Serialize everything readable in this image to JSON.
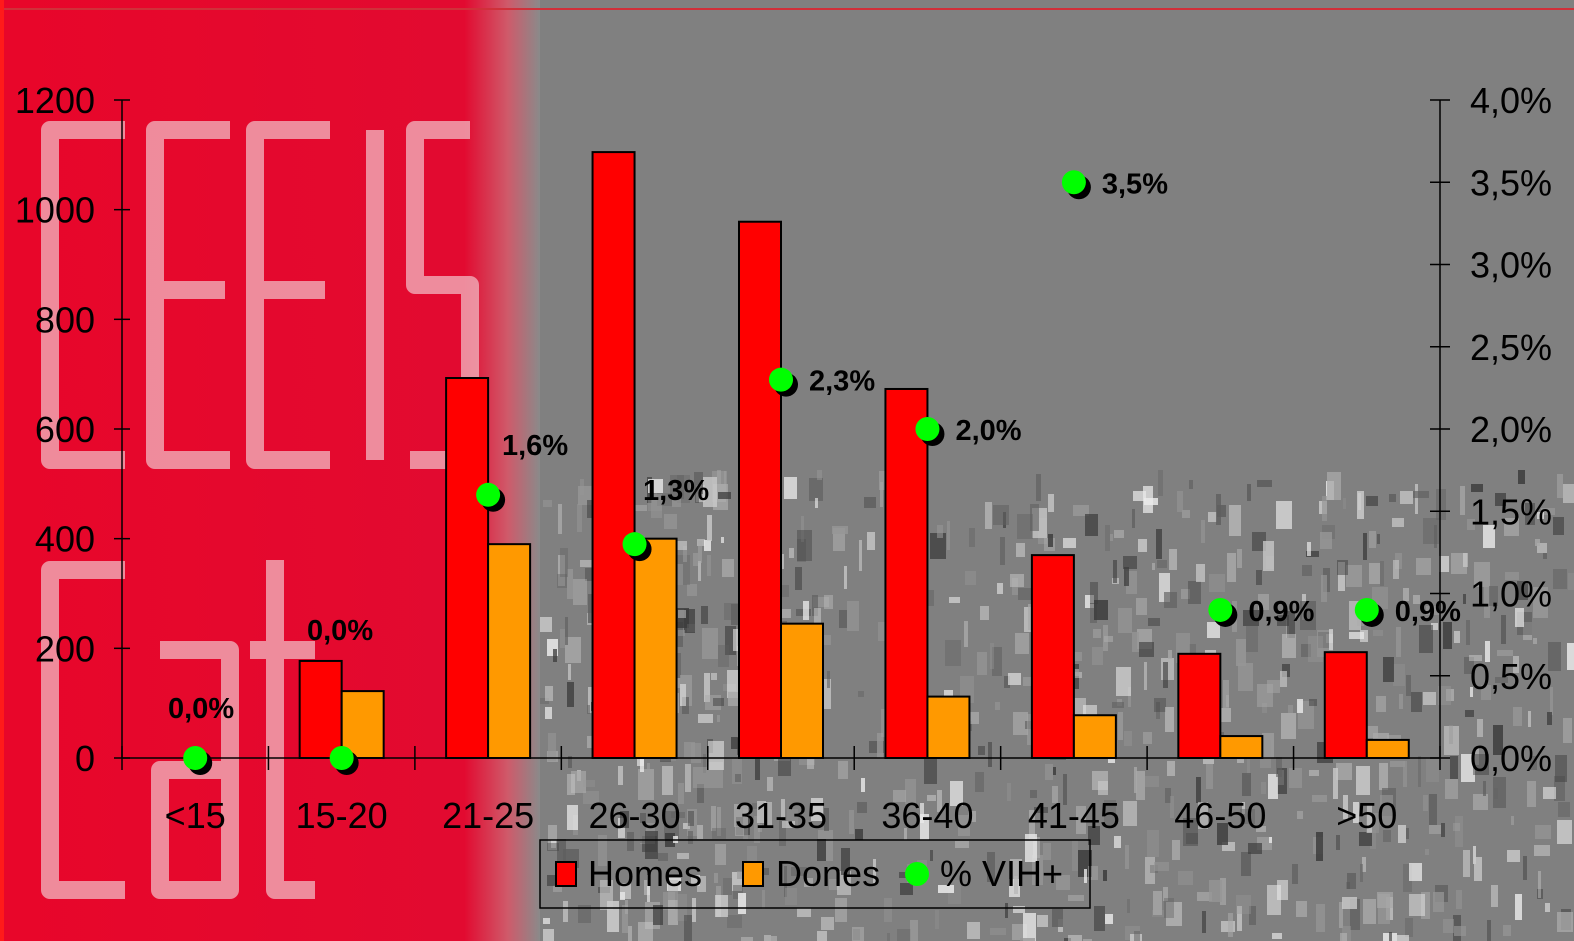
{
  "chart_data": {
    "type": "bar",
    "categories": [
      "<15",
      "15-20",
      "21-25",
      "26-30",
      "31-35",
      "36-40",
      "41-45",
      "46-50",
      ">50"
    ],
    "series": [
      {
        "name": "Homes",
        "type": "bar",
        "axis": "left",
        "color": "#ff0000",
        "values": [
          0,
          177,
          693,
          1105,
          978,
          673,
          370,
          190,
          193
        ]
      },
      {
        "name": "Dones",
        "type": "bar",
        "axis": "left",
        "color": "#ff9900",
        "values": [
          0,
          122,
          390,
          400,
          245,
          112,
          78,
          40,
          33
        ]
      },
      {
        "name": "% VIH+",
        "type": "scatter",
        "axis": "right",
        "color": "#00ff00",
        "values": [
          0.0,
          0.0,
          1.6,
          1.3,
          2.3,
          2.0,
          3.5,
          0.9,
          0.9
        ],
        "labels": [
          "0,0%",
          "0,0%",
          "1,6%",
          "1,3%",
          "2,3%",
          "2,0%",
          "3,5%",
          "0,9%",
          "0,9%"
        ]
      }
    ],
    "y_left": {
      "ylim": [
        0,
        1200
      ],
      "ticks": [
        0,
        200,
        400,
        600,
        800,
        1000,
        1200
      ],
      "tick_labels": [
        "0",
        "200",
        "400",
        "600",
        "800",
        "1000",
        "1200"
      ]
    },
    "y_right": {
      "ylim": [
        0,
        4.0
      ],
      "ticks": [
        0,
        0.5,
        1.0,
        1.5,
        2.0,
        2.5,
        3.0,
        3.5,
        4.0
      ],
      "tick_labels": [
        "0,0%",
        "0,5%",
        "1,0%",
        "1,5%",
        "2,0%",
        "2,5%",
        "3,0%",
        "3,5%",
        "4,0%"
      ]
    },
    "title": "",
    "xlabel": "",
    "ylabel": "",
    "grid": false,
    "legend": {
      "position": "bottom-center",
      "entries": [
        "Homes",
        "Dones",
        "% VIH+"
      ]
    }
  },
  "watermark": {
    "text": "CEEIS Cat"
  }
}
